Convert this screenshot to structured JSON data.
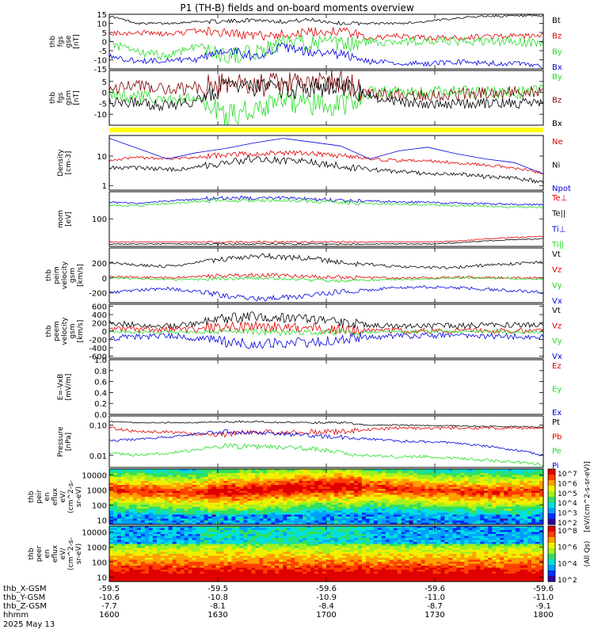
{
  "title": "P1 (TH-B) fields and on-board moments overview",
  "colors": {
    "black": "#000000",
    "red": "#e00000",
    "green": "#22dd22",
    "blue": "#0000dd",
    "darkred": "#800000",
    "yellow": "#ffff00"
  },
  "chart_data": [
    {
      "type": "line",
      "id": "fgs",
      "ylabel": [
        "thb",
        "fgs",
        "gse",
        "[nT]"
      ],
      "ylim": [
        -15,
        15
      ],
      "yticks": [
        "15",
        "10",
        "5",
        "0",
        "-5",
        "-10",
        "-15"
      ],
      "yticks_values": [
        15,
        10,
        5,
        0,
        -5,
        -10,
        -15
      ],
      "series": [
        {
          "name": "Bt",
          "color": "#000000",
          "values": [
            14,
            10,
            10,
            11,
            11,
            12,
            11,
            12,
            10,
            10,
            10,
            11,
            13,
            14,
            14,
            14
          ],
          "noise": 0.6
        },
        {
          "name": "Bz",
          "color": "#e00000",
          "values": [
            4,
            5,
            4,
            6,
            5,
            3,
            4,
            5,
            6,
            2,
            3,
            2,
            2,
            3,
            3,
            3
          ],
          "noise": 1.5
        },
        {
          "name": "By",
          "color": "#22dd22",
          "values": [
            -1,
            -6,
            -8,
            -2,
            -8,
            -6,
            -1,
            0,
            -2,
            0,
            0,
            0,
            0,
            0,
            0,
            -1
          ],
          "noise": 2.5
        },
        {
          "name": "Bx",
          "color": "#0000dd",
          "values": [
            -8,
            -11,
            -10,
            -10,
            -4,
            -8,
            -3,
            -6,
            -7,
            -11,
            -12,
            -12,
            -11,
            -12,
            -12,
            -14
          ],
          "noise": 1.5
        }
      ]
    },
    {
      "type": "line",
      "id": "fgs-gsm",
      "ylabel": [
        "thb",
        "fgs",
        "gsm",
        "[nT]"
      ],
      "ylim": [
        -15,
        10
      ],
      "yticks": [
        "5",
        "0",
        "-5",
        "-10"
      ],
      "yticks_values": [
        5,
        0,
        -5,
        -10
      ],
      "series": [
        {
          "name": "By",
          "color": "#22dd22",
          "values": [
            -1,
            -2,
            -4,
            -3,
            -10,
            -8,
            -4,
            -5,
            -6,
            0,
            0,
            0,
            0,
            0,
            0,
            1
          ],
          "noise": 3
        },
        {
          "name": "Bz",
          "color": "#800000",
          "values": [
            2,
            3,
            1,
            2,
            4,
            3,
            4,
            4,
            5,
            0,
            -1,
            -1,
            -1,
            0,
            0,
            0
          ],
          "noise": 3
        },
        {
          "name": "Bx",
          "color": "#000000",
          "values": [
            -4,
            -5,
            -6,
            -4,
            3,
            2,
            1,
            2,
            3,
            -2,
            -4,
            -5,
            -5,
            -5,
            -5,
            -5
          ],
          "noise": 2.5
        }
      ]
    },
    {
      "type": "line",
      "id": "density",
      "scale": "log",
      "ylabel": [
        "Density",
        "[cm-3]"
      ],
      "ylim": [
        0.7,
        50
      ],
      "yticks": [
        "10",
        "1"
      ],
      "yticks_values": [
        10,
        1
      ],
      "series": [
        {
          "name": "Ne",
          "color": "#e00000",
          "values": [
            7,
            9,
            8,
            9,
            11,
            12,
            13,
            12,
            10,
            8,
            7,
            7,
            6,
            5,
            4,
            2.5
          ],
          "noise": 0.05
        },
        {
          "name": "Ni",
          "color": "#000000",
          "values": [
            4,
            4,
            3.5,
            4,
            6,
            8,
            7,
            6,
            4.5,
            3.5,
            3,
            2.5,
            2.5,
            2,
            1.8,
            1.3
          ],
          "noise": 0.07
        },
        {
          "name": "Npot",
          "color": "#0000dd",
          "values": [
            40,
            18,
            8,
            13,
            18,
            28,
            40,
            30,
            22,
            8,
            15,
            20,
            12,
            8,
            6,
            2.5
          ],
          "noise": 0
        }
      ]
    },
    {
      "type": "line",
      "id": "temp",
      "scale": "log",
      "ylabel": [
        "mom",
        "[eV]"
      ],
      "ylim": [
        8,
        1200
      ],
      "yticks": [
        "100"
      ],
      "yticks_values": [
        100
      ],
      "series": [
        {
          "name": "Te⊥",
          "color": "#e00000",
          "values": [
            12,
            12,
            12,
            12,
            12,
            12,
            12,
            12,
            12,
            12,
            12,
            12,
            13,
            16,
            18,
            20
          ],
          "noise": 0.02
        },
        {
          "name": "Te||",
          "color": "#000000",
          "values": [
            10,
            10,
            10,
            10,
            10,
            10,
            10,
            10,
            10,
            10,
            10,
            10,
            11,
            13,
            15,
            16
          ],
          "noise": 0.02
        },
        {
          "name": "Ti⊥",
          "color": "#0000dd",
          "values": [
            450,
            420,
            500,
            600,
            700,
            650,
            680,
            620,
            550,
            500,
            480,
            450,
            420,
            400,
            380,
            360
          ],
          "noise": 0.04
        },
        {
          "name": "Ti||",
          "color": "#22dd22",
          "values": [
            350,
            330,
            400,
            480,
            560,
            520,
            560,
            500,
            450,
            400,
            390,
            360,
            330,
            320,
            300,
            280
          ],
          "noise": 0.04
        }
      ]
    },
    {
      "type": "line",
      "id": "ion-velocity",
      "ylabel": [
        "thb",
        "peim",
        "velocity",
        "gsm",
        "[km/s]"
      ],
      "ylim": [
        -330,
        400
      ],
      "yticks": [
        "200",
        "0",
        "-200"
      ],
      "yticks_values": [
        200,
        0,
        -200
      ],
      "series": [
        {
          "name": "Vt",
          "color": "#000000",
          "values": [
            210,
            170,
            150,
            200,
            250,
            300,
            280,
            260,
            200,
            180,
            150,
            140,
            140,
            170,
            190,
            210
          ],
          "noise": 20
        },
        {
          "name": "Vz",
          "color": "#e00000",
          "values": [
            20,
            10,
            0,
            20,
            30,
            40,
            30,
            20,
            10,
            0,
            -5,
            0,
            10,
            5,
            0,
            0
          ],
          "noise": 15
        },
        {
          "name": "Vy",
          "color": "#22dd22",
          "values": [
            0,
            -10,
            -20,
            -20,
            -10,
            0,
            -10,
            -30,
            -40,
            -30,
            -20,
            -10,
            0,
            0,
            -10,
            -20
          ],
          "noise": 12
        },
        {
          "name": "Vx",
          "color": "#0000dd",
          "values": [
            -200,
            -160,
            -140,
            -180,
            -240,
            -280,
            -260,
            -240,
            -180,
            -160,
            -130,
            -120,
            -130,
            -150,
            -170,
            -190
          ],
          "noise": 20
        }
      ]
    },
    {
      "type": "line",
      "id": "electron-velocity",
      "ylabel": [
        "thb",
        "peem",
        "velocity",
        "gsm",
        "[km/s]"
      ],
      "ylim": [
        -650,
        650
      ],
      "yticks": [
        "600",
        "400",
        "200",
        "0",
        "-200",
        "-400",
        "-600"
      ],
      "yticks_values": [
        600,
        400,
        200,
        0,
        -200,
        -400,
        -600
      ],
      "series": [
        {
          "name": "Vt",
          "color": "#000000",
          "values": [
            200,
            160,
            120,
            180,
            300,
            350,
            330,
            320,
            200,
            150,
            130,
            120,
            130,
            140,
            150,
            160
          ],
          "noise": 70
        },
        {
          "name": "Vz",
          "color": "#e00000",
          "values": [
            60,
            40,
            30,
            40,
            100,
            120,
            100,
            80,
            40,
            20,
            10,
            10,
            20,
            10,
            10,
            0
          ],
          "noise": 70
        },
        {
          "name": "Vy",
          "color": "#22dd22",
          "values": [
            -20,
            -20,
            -30,
            -20,
            0,
            -20,
            -30,
            -30,
            -20,
            -20,
            -20,
            -10,
            -10,
            -10,
            -20,
            -20
          ],
          "noise": 40
        },
        {
          "name": "Vx",
          "color": "#0000dd",
          "values": [
            -160,
            -140,
            -110,
            -170,
            -260,
            -300,
            -280,
            -280,
            -180,
            -140,
            -120,
            -110,
            -110,
            -120,
            -130,
            -140
          ],
          "noise": 70
        }
      ]
    },
    {
      "type": "line",
      "id": "efield",
      "ylabel": [
        "E=-VxB",
        "[mV/m]"
      ],
      "ylim": [
        0,
        1
      ],
      "yticks": [
        "1.0",
        "0.8",
        "0.6",
        "0.4",
        "0.2",
        "0.0"
      ],
      "yticks_values": [
        1,
        0.8,
        0.6,
        0.4,
        0.2,
        0
      ],
      "series": [
        {
          "name": "Ez",
          "color": "#e00000",
          "values": []
        },
        {
          "name": "Ey",
          "color": "#22dd22",
          "values": []
        },
        {
          "name": "Ex",
          "color": "#0000dd",
          "values": []
        }
      ]
    },
    {
      "type": "line",
      "id": "pressure",
      "scale": "log",
      "ylabel": [
        "Pressure",
        "[nPa]"
      ],
      "ylim": [
        0.004,
        0.2
      ],
      "yticks": [
        "0.10",
        "0.01"
      ],
      "yticks_values": [
        0.1,
        0.01
      ],
      "series": [
        {
          "name": "Pt",
          "color": "#000000",
          "values": [
            0.13,
            0.12,
            0.12,
            0.12,
            0.13,
            0.13,
            0.12,
            0.12,
            0.12,
            0.1,
            0.1,
            0.095,
            0.095,
            0.09,
            0.09,
            0.085
          ],
          "noise": 0.02
        },
        {
          "name": "Pb",
          "color": "#e00000",
          "values": [
            0.08,
            0.06,
            0.06,
            0.05,
            0.05,
            0.06,
            0.055,
            0.06,
            0.06,
            0.07,
            0.08,
            0.075,
            0.08,
            0.08,
            0.08,
            0.085
          ],
          "noise": 0.05
        },
        {
          "name": "Pe",
          "color": "#22dd22",
          "values": [
            0.012,
            0.01,
            0.012,
            0.015,
            0.02,
            0.02,
            0.018,
            0.016,
            0.012,
            0.01,
            0.009,
            0.009,
            0.008,
            0.007,
            0.006,
            0.005
          ],
          "noise": 0.05
        },
        {
          "name": "Pi",
          "color": "#0000dd",
          "values": [
            0.03,
            0.035,
            0.04,
            0.05,
            0.06,
            0.055,
            0.05,
            0.045,
            0.04,
            0.035,
            0.03,
            0.028,
            0.025,
            0.02,
            0.015,
            0.01
          ],
          "noise": 0.04
        }
      ]
    },
    {
      "type": "heatmap",
      "id": "ion-spectrogram",
      "ylabel": [
        "thb",
        "peir",
        "en",
        "eflux",
        "eV/",
        "(cm^2-s-",
        "sr-eV)"
      ],
      "ylim": [
        5,
        25000
      ],
      "yticks": [
        "10000",
        "1000",
        "100",
        "10"
      ],
      "yticks_values": [
        10000,
        1000,
        100,
        10
      ],
      "colorbar": {
        "label": "[eV/(cm^2-s-sr-eV)]",
        "ticks": [
          "10^7",
          "10^6",
          "10^5",
          "10^4",
          "10^3",
          "10^2"
        ]
      }
    },
    {
      "type": "heatmap",
      "id": "electron-spectrogram",
      "ylabel": [
        "thb",
        "peer",
        "en",
        "eflux",
        "eV/",
        "(cm^2-s-",
        "sr-eV)"
      ],
      "ylim": [
        5,
        25000
      ],
      "yticks": [
        "10000",
        "1000",
        "100",
        "10"
      ],
      "yticks_values": [
        10000,
        1000,
        100,
        10
      ],
      "colorbar": {
        "label": "(All Qs)",
        "ticks": [
          "10^8",
          "10^6",
          "10^4",
          "10^2"
        ]
      }
    }
  ],
  "xaxis": {
    "rows": [
      {
        "label": "thb_X-GSM",
        "values": [
          "-59.5",
          "-59.5",
          "-59.6",
          "-59.6",
          "-59.6"
        ]
      },
      {
        "label": "thb_Y-GSM",
        "values": [
          "-10.6",
          "-10.8",
          "-10.9",
          "-11.0",
          "-11.0"
        ]
      },
      {
        "label": "thb_Z-GSM",
        "values": [
          "-7.7",
          "-8.1",
          "-8.4",
          "-8.7",
          "-9.1"
        ]
      },
      {
        "label": "hhmm",
        "values": [
          "1600",
          "1630",
          "1700",
          "1730",
          "1800"
        ]
      }
    ],
    "date": "2025 May 13"
  }
}
